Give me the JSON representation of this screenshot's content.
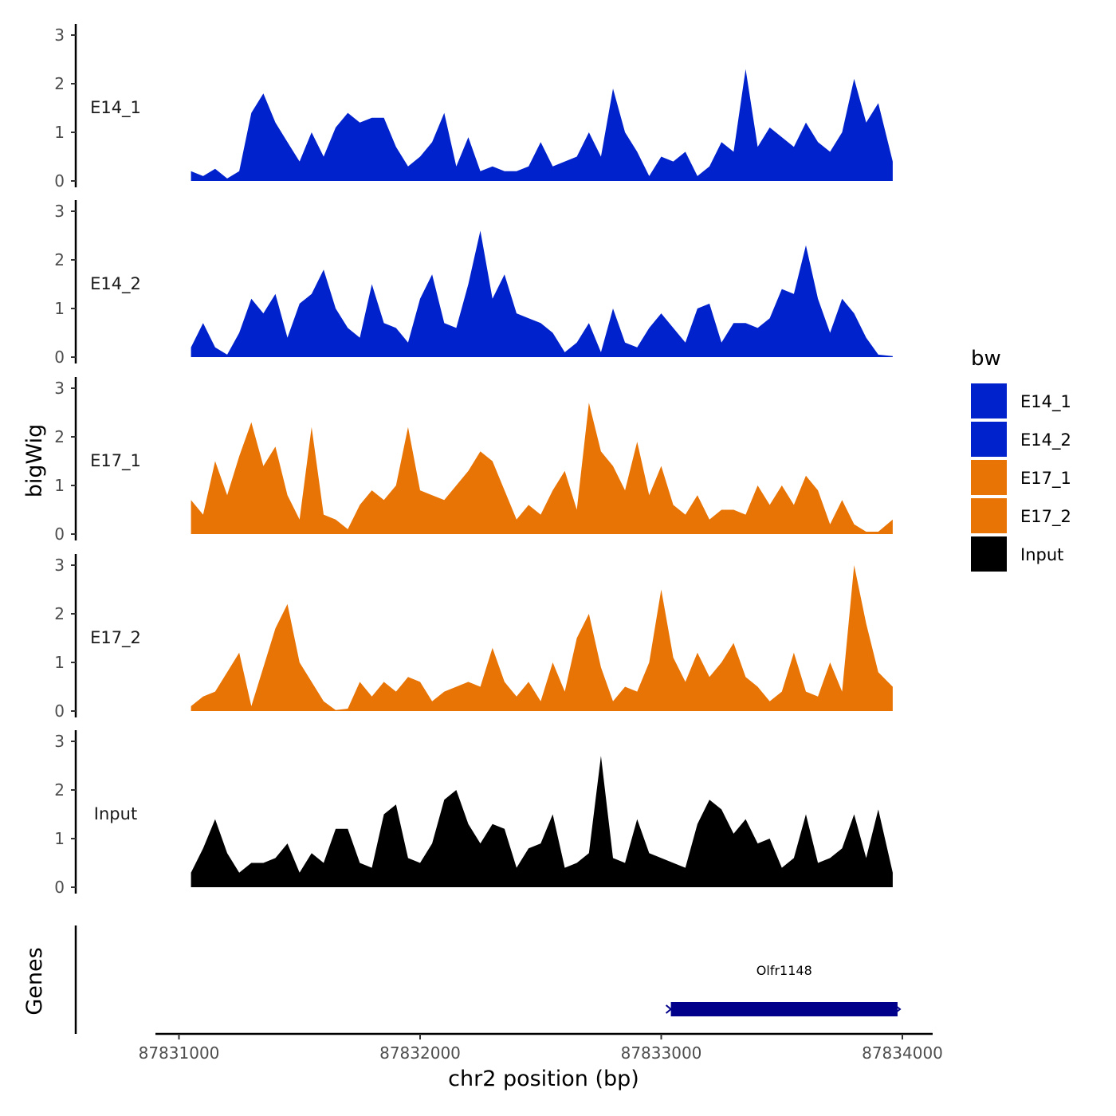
{
  "chart_data": {
    "type": "area",
    "colors": {
      "E14_1": "#0022CC",
      "E14_2": "#0022CC",
      "E17_1": "#E87406",
      "E17_2": "#E87406",
      "Input": "#000000",
      "gene": "#00008B"
    },
    "y_axis_title": "bigWig",
    "x_axis_title": "chr2 position (bp)",
    "ylim": [
      0,
      3
    ],
    "y_ticks": [
      "0",
      "1",
      "2",
      "3"
    ],
    "xlim": [
      87831050,
      87833960
    ],
    "x_ticks": [
      {
        "value": 87831000,
        "label": "87831000"
      },
      {
        "value": 87832000,
        "label": "87832000"
      },
      {
        "value": 87833000,
        "label": "87833000"
      },
      {
        "value": 87834000,
        "label": "87834000"
      }
    ],
    "series": [
      {
        "name": "E14_1",
        "x": [
          87831050,
          87831100,
          87831150,
          87831200,
          87831250,
          87831300,
          87831350,
          87831400,
          87831450,
          87831500,
          87831550,
          87831600,
          87831650,
          87831700,
          87831750,
          87831800,
          87831850,
          87831900,
          87831950,
          87832000,
          87832050,
          87832100,
          87832150,
          87832200,
          87832250,
          87832300,
          87832350,
          87832400,
          87832450,
          87832500,
          87832550,
          87832600,
          87832650,
          87832700,
          87832750,
          87832800,
          87832850,
          87832900,
          87832950,
          87833000,
          87833050,
          87833100,
          87833150,
          87833200,
          87833250,
          87833300,
          87833350,
          87833400,
          87833450,
          87833500,
          87833550,
          87833600,
          87833650,
          87833700,
          87833750,
          87833800,
          87833850,
          87833900,
          87833960
        ],
        "values": [
          0.2,
          0.1,
          0.25,
          0.05,
          0.2,
          1.4,
          1.8,
          1.2,
          0.8,
          0.4,
          1.0,
          0.5,
          1.1,
          1.4,
          1.2,
          1.3,
          1.3,
          0.7,
          0.3,
          0.5,
          0.8,
          1.4,
          0.3,
          0.9,
          0.2,
          0.3,
          0.2,
          0.2,
          0.3,
          0.8,
          0.3,
          0.4,
          0.5,
          1.0,
          0.5,
          1.9,
          1.0,
          0.6,
          0.1,
          0.5,
          0.4,
          0.6,
          0.1,
          0.3,
          0.8,
          0.6,
          2.3,
          0.7,
          1.1,
          0.9,
          0.7,
          1.2,
          0.8,
          0.6,
          1.0,
          2.1,
          1.2,
          1.6,
          0.4
        ]
      },
      {
        "name": "E14_2",
        "x": [
          87831050,
          87831100,
          87831150,
          87831200,
          87831250,
          87831300,
          87831350,
          87831400,
          87831450,
          87831500,
          87831550,
          87831600,
          87831650,
          87831700,
          87831750,
          87831800,
          87831850,
          87831900,
          87831950,
          87832000,
          87832050,
          87832100,
          87832150,
          87832200,
          87832250,
          87832300,
          87832350,
          87832400,
          87832450,
          87832500,
          87832550,
          87832600,
          87832650,
          87832700,
          87832750,
          87832800,
          87832850,
          87832900,
          87832950,
          87833000,
          87833050,
          87833100,
          87833150,
          87833200,
          87833250,
          87833300,
          87833350,
          87833400,
          87833450,
          87833500,
          87833550,
          87833600,
          87833650,
          87833700,
          87833750,
          87833800,
          87833850,
          87833900,
          87833960
        ],
        "values": [
          0.2,
          0.7,
          0.2,
          0.05,
          0.5,
          1.2,
          0.9,
          1.3,
          0.4,
          1.1,
          1.3,
          1.8,
          1.0,
          0.6,
          0.4,
          1.5,
          0.7,
          0.6,
          0.3,
          1.2,
          1.7,
          0.7,
          0.6,
          1.5,
          2.6,
          1.2,
          1.7,
          0.9,
          0.8,
          0.7,
          0.5,
          0.1,
          0.3,
          0.7,
          0.1,
          1.0,
          0.3,
          0.2,
          0.6,
          0.9,
          0.6,
          0.3,
          1.0,
          1.1,
          0.3,
          0.7,
          0.7,
          0.6,
          0.8,
          1.4,
          1.3,
          2.3,
          1.2,
          0.5,
          1.2,
          0.9,
          0.4,
          0.05,
          0.02
        ]
      },
      {
        "name": "E17_1",
        "x": [
          87831050,
          87831100,
          87831150,
          87831200,
          87831250,
          87831300,
          87831350,
          87831400,
          87831450,
          87831500,
          87831550,
          87831600,
          87831650,
          87831700,
          87831750,
          87831800,
          87831850,
          87831900,
          87831950,
          87832000,
          87832050,
          87832100,
          87832150,
          87832200,
          87832250,
          87832300,
          87832350,
          87832400,
          87832450,
          87832500,
          87832550,
          87832600,
          87832650,
          87832700,
          87832750,
          87832800,
          87832850,
          87832900,
          87832950,
          87833000,
          87833050,
          87833100,
          87833150,
          87833200,
          87833250,
          87833300,
          87833350,
          87833400,
          87833450,
          87833500,
          87833550,
          87833600,
          87833650,
          87833700,
          87833750,
          87833800,
          87833850,
          87833900,
          87833960
        ],
        "values": [
          0.7,
          0.4,
          1.5,
          0.8,
          1.6,
          2.3,
          1.4,
          1.8,
          0.8,
          0.3,
          2.2,
          0.4,
          0.3,
          0.1,
          0.6,
          0.9,
          0.7,
          1.0,
          2.2,
          0.9,
          0.8,
          0.7,
          1.0,
          1.3,
          1.7,
          1.5,
          0.9,
          0.3,
          0.6,
          0.4,
          0.9,
          1.3,
          0.5,
          2.7,
          1.7,
          1.4,
          0.9,
          1.9,
          0.8,
          1.4,
          0.6,
          0.4,
          0.8,
          0.3,
          0.5,
          0.5,
          0.4,
          1.0,
          0.6,
          1.0,
          0.6,
          1.2,
          0.9,
          0.2,
          0.7,
          0.2,
          0.05,
          0.05,
          0.3
        ]
      },
      {
        "name": "E17_2",
        "x": [
          87831050,
          87831100,
          87831150,
          87831200,
          87831250,
          87831300,
          87831350,
          87831400,
          87831450,
          87831500,
          87831550,
          87831600,
          87831650,
          87831700,
          87831750,
          87831800,
          87831850,
          87831900,
          87831950,
          87832000,
          87832050,
          87832100,
          87832150,
          87832200,
          87832250,
          87832300,
          87832350,
          87832400,
          87832450,
          87832500,
          87832550,
          87832600,
          87832650,
          87832700,
          87832750,
          87832800,
          87832850,
          87832900,
          87832950,
          87833000,
          87833050,
          87833100,
          87833150,
          87833200,
          87833250,
          87833300,
          87833350,
          87833400,
          87833450,
          87833500,
          87833550,
          87833600,
          87833650,
          87833700,
          87833750,
          87833800,
          87833850,
          87833900,
          87833960
        ],
        "values": [
          0.1,
          0.3,
          0.4,
          0.8,
          1.2,
          0.1,
          0.9,
          1.7,
          2.2,
          1.0,
          0.6,
          0.2,
          0.02,
          0.05,
          0.6,
          0.3,
          0.6,
          0.4,
          0.7,
          0.6,
          0.2,
          0.4,
          0.5,
          0.6,
          0.5,
          1.3,
          0.6,
          0.3,
          0.6,
          0.2,
          1.0,
          0.4,
          1.5,
          2.0,
          0.9,
          0.2,
          0.5,
          0.4,
          1.0,
          2.5,
          1.1,
          0.6,
          1.2,
          0.7,
          1.0,
          1.4,
          0.7,
          0.5,
          0.2,
          0.4,
          1.2,
          0.4,
          0.3,
          1.0,
          0.4,
          3.0,
          1.8,
          0.8,
          0.5
        ]
      },
      {
        "name": "Input",
        "x": [
          87831050,
          87831100,
          87831150,
          87831200,
          87831250,
          87831300,
          87831350,
          87831400,
          87831450,
          87831500,
          87831550,
          87831600,
          87831650,
          87831700,
          87831750,
          87831800,
          87831850,
          87831900,
          87831950,
          87832000,
          87832050,
          87832100,
          87832150,
          87832200,
          87832250,
          87832300,
          87832350,
          87832400,
          87832450,
          87832500,
          87832550,
          87832600,
          87832650,
          87832700,
          87832750,
          87832800,
          87832850,
          87832900,
          87832950,
          87833000,
          87833050,
          87833100,
          87833150,
          87833200,
          87833250,
          87833300,
          87833350,
          87833400,
          87833450,
          87833500,
          87833550,
          87833600,
          87833650,
          87833700,
          87833750,
          87833800,
          87833850,
          87833900,
          87833960
        ],
        "values": [
          0.3,
          0.8,
          1.4,
          0.7,
          0.3,
          0.5,
          0.5,
          0.6,
          0.9,
          0.3,
          0.7,
          0.5,
          1.2,
          1.2,
          0.5,
          0.4,
          1.5,
          1.7,
          0.6,
          0.5,
          0.9,
          1.8,
          2.0,
          1.3,
          0.9,
          1.3,
          1.2,
          0.4,
          0.8,
          0.9,
          1.5,
          0.4,
          0.5,
          0.7,
          2.7,
          0.6,
          0.5,
          1.4,
          0.7,
          0.6,
          0.5,
          0.4,
          1.3,
          1.8,
          1.6,
          1.1,
          1.4,
          0.9,
          1.0,
          0.4,
          0.6,
          1.5,
          0.5,
          0.6,
          0.8,
          1.5,
          0.6,
          1.6,
          0.3
        ]
      }
    ],
    "legend": {
      "title": "bw",
      "entries": [
        "E14_1",
        "E14_2",
        "E17_1",
        "E17_2",
        "Input"
      ]
    },
    "genes": {
      "axis_title": "Genes",
      "items": [
        {
          "name": "Olfr1148",
          "start": 87833040,
          "end": 87833980,
          "strand": "+"
        }
      ]
    }
  }
}
